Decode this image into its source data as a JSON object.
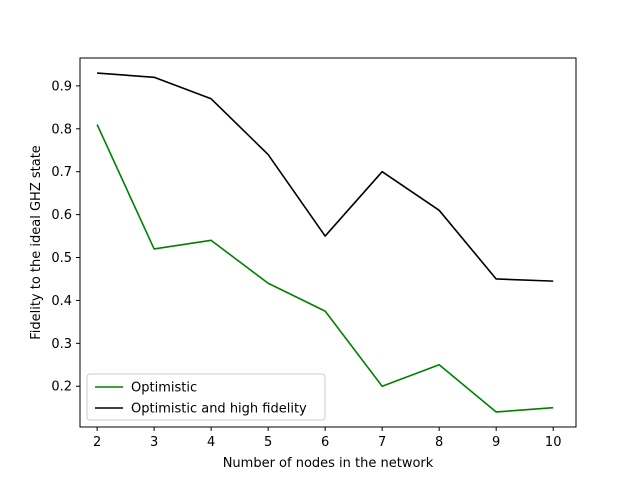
{
  "chart_data": {
    "type": "line",
    "title": "",
    "xlabel": "Number of nodes in the network",
    "ylabel": "Fidelity to the ideal GHZ state",
    "x": [
      2,
      3,
      4,
      5,
      6,
      7,
      8,
      9,
      10
    ],
    "xlim": [
      1.7,
      10.4
    ],
    "ylim": [
      0.105,
      0.965
    ],
    "xticks": [
      "2",
      "3",
      "4",
      "5",
      "6",
      "7",
      "8",
      "9",
      "10"
    ],
    "yticks": [
      "0.2",
      "0.3",
      "0.4",
      "0.5",
      "0.6",
      "0.7",
      "0.8",
      "0.9"
    ],
    "grid": false,
    "legend_position": "lower-left",
    "series": [
      {
        "name": "Optimistic",
        "color": "#008000",
        "values": [
          0.81,
          0.52,
          0.54,
          0.44,
          0.375,
          0.2,
          0.25,
          0.14,
          0.15
        ]
      },
      {
        "name": "Optimistic and high fidelity",
        "color": "#000000",
        "values": [
          0.93,
          0.92,
          0.87,
          0.74,
          0.55,
          0.7,
          0.61,
          0.45,
          0.445
        ]
      }
    ]
  }
}
